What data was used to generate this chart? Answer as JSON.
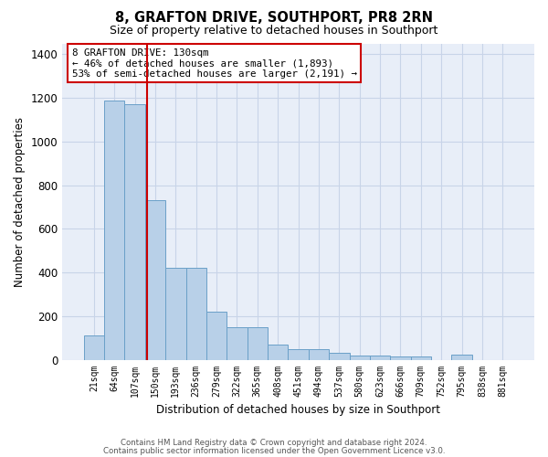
{
  "title1": "8, GRAFTON DRIVE, SOUTHPORT, PR8 2RN",
  "title2": "Size of property relative to detached houses in Southport",
  "xlabel": "Distribution of detached houses by size in Southport",
  "ylabel": "Number of detached properties",
  "categories": [
    "21sqm",
    "64sqm",
    "107sqm",
    "150sqm",
    "193sqm",
    "236sqm",
    "279sqm",
    "322sqm",
    "365sqm",
    "408sqm",
    "451sqm",
    "494sqm",
    "537sqm",
    "580sqm",
    "623sqm",
    "666sqm",
    "709sqm",
    "752sqm",
    "795sqm",
    "838sqm",
    "881sqm"
  ],
  "values": [
    110,
    1190,
    1170,
    730,
    420,
    420,
    220,
    150,
    150,
    70,
    50,
    50,
    30,
    20,
    20,
    15,
    15,
    0,
    25,
    0,
    0
  ],
  "bar_color": "#b8d0e8",
  "bar_edge_color": "#6aa0c8",
  "background_color": "#e8eef8",
  "grid_color": "#c8d4e8",
  "red_line_x": 2.62,
  "annotation_text": "8 GRAFTON DRIVE: 130sqm\n← 46% of detached houses are smaller (1,893)\n53% of semi-detached houses are larger (2,191) →",
  "footer1": "Contains HM Land Registry data © Crown copyright and database right 2024.",
  "footer2": "Contains public sector information licensed under the Open Government Licence v3.0.",
  "ylim": [
    0,
    1450
  ],
  "yticks": [
    0,
    200,
    400,
    600,
    800,
    1000,
    1200,
    1400
  ]
}
